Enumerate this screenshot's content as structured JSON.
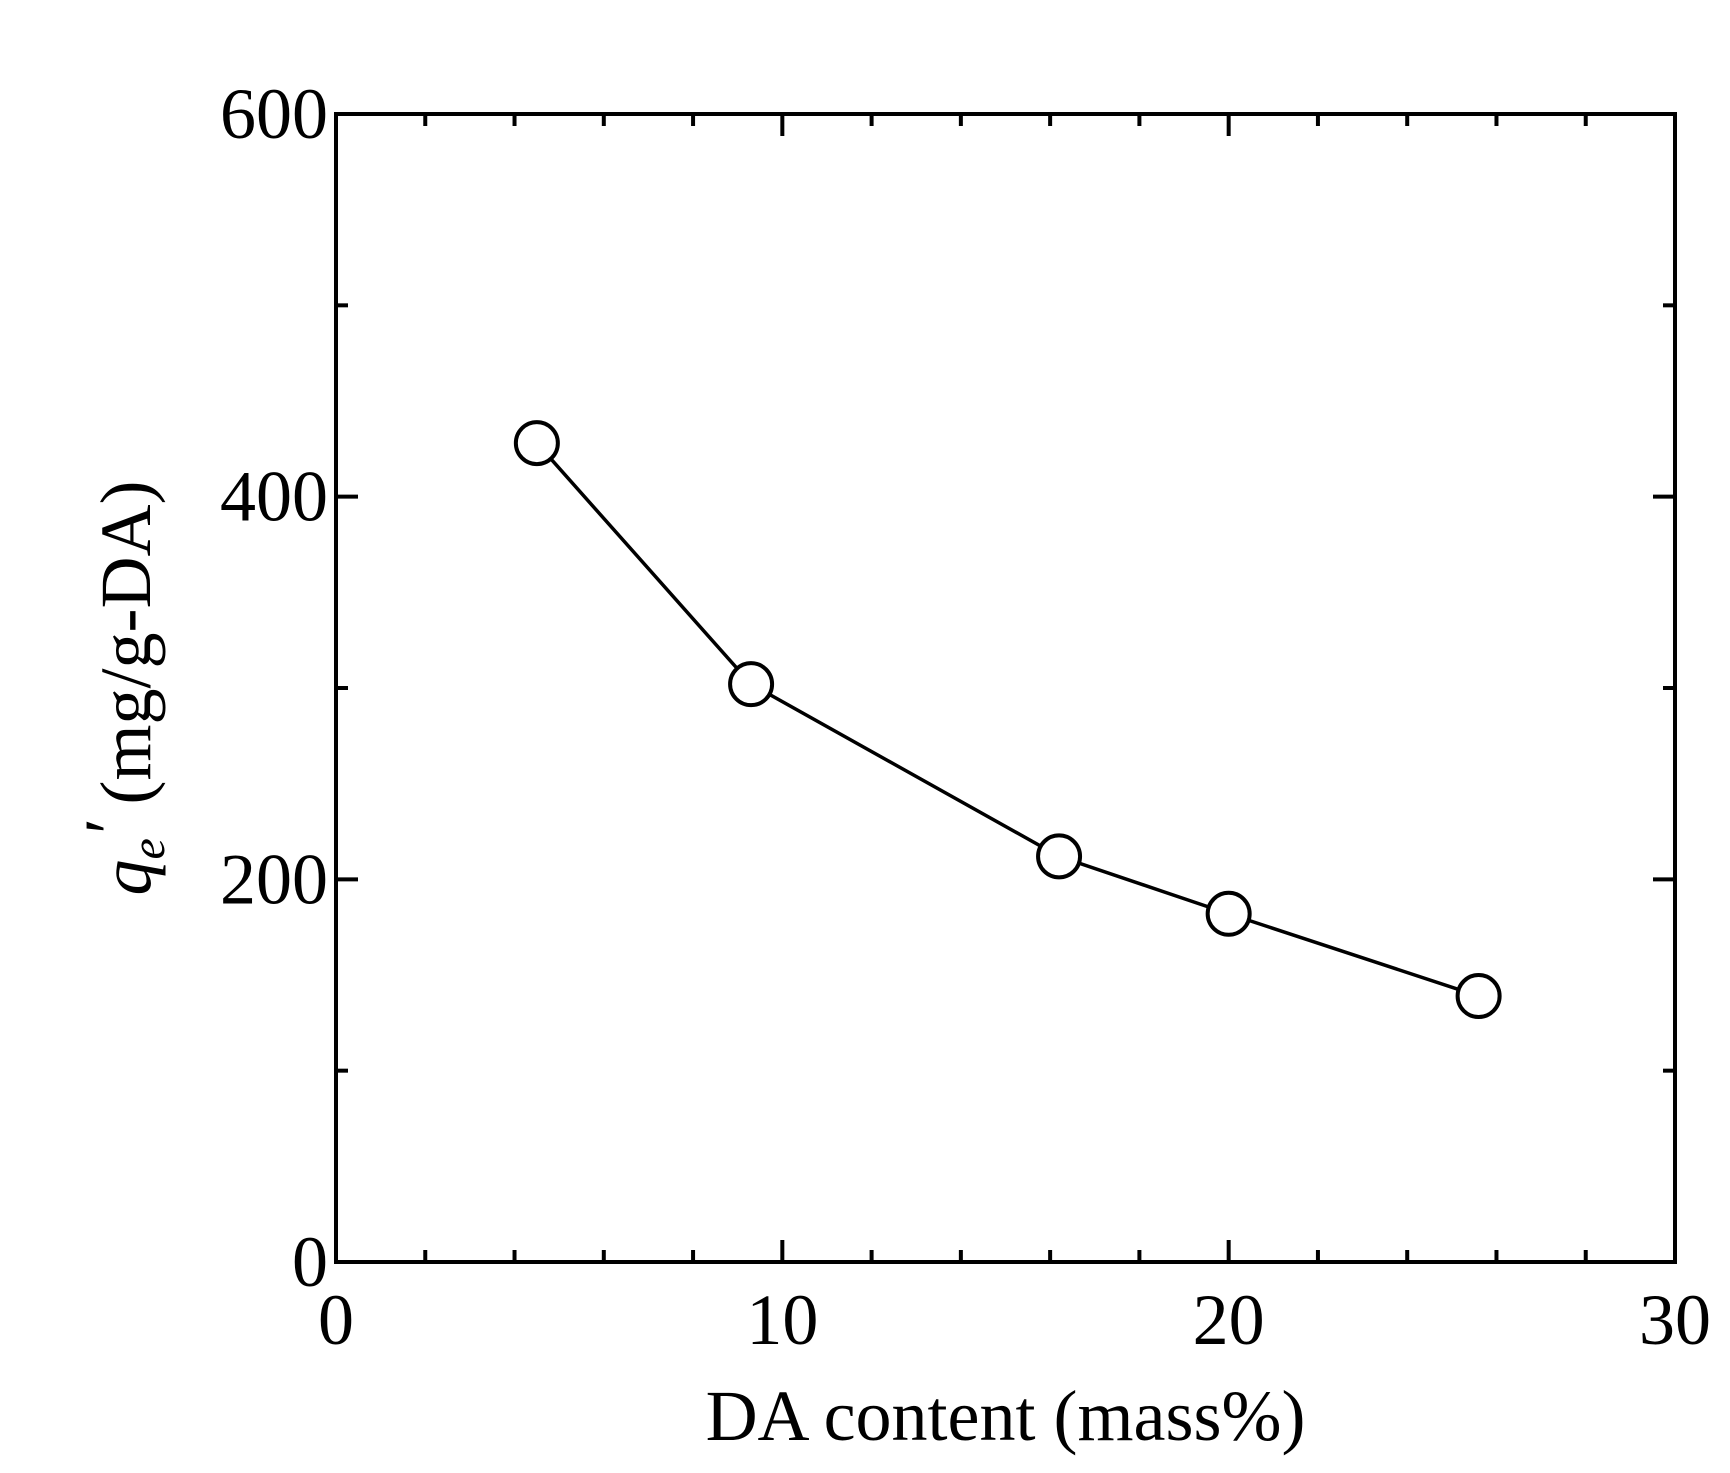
{
  "chart_data": {
    "type": "line",
    "title": "",
    "xlabel": "DA content (mass%)",
    "ylabel": {
      "symbol": "q",
      "subscript": "e",
      "prime": "′",
      "unit": " (mg/g-DA)"
    },
    "xlim": [
      0,
      30
    ],
    "ylim": [
      0,
      600
    ],
    "x_major_ticks": [
      0,
      10,
      20,
      30
    ],
    "x_minor_ticks": [
      2,
      4,
      6,
      8,
      12,
      14,
      16,
      18,
      22,
      24,
      26,
      28
    ],
    "y_major_ticks": [
      0,
      200,
      400,
      600
    ],
    "y_minor_ticks": [
      100,
      300,
      500
    ],
    "grid": false,
    "marker": "open-circle",
    "series": [
      {
        "x": [
          4.5,
          9.3,
          16.2,
          20.0,
          25.6
        ],
        "y": [
          428,
          302,
          212,
          182,
          139
        ]
      }
    ]
  }
}
